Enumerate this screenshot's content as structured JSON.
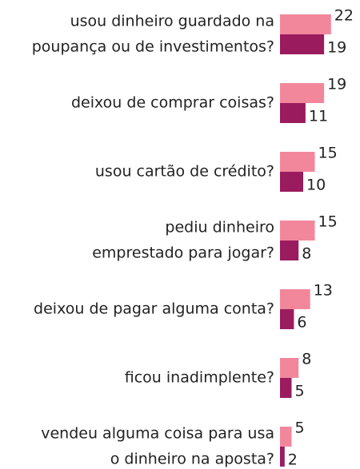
{
  "chart_data": {
    "type": "bar",
    "orientation": "horizontal",
    "categories": [
      [
        "usou dinheiro guardado na",
        "poupança ou de investimentos?"
      ],
      [
        "deixou de comprar coisas?"
      ],
      [
        "usou cartão de crédito?"
      ],
      [
        "pediu dinheiro",
        "emprestado para jogar?"
      ],
      [
        "deixou de pagar alguma conta?"
      ],
      [
        "ficou inadimplente?"
      ],
      [
        "vendeu alguma coisa para usa",
        "o dinheiro na aposta?"
      ]
    ],
    "series": [
      {
        "color": "#f2879c",
        "values": [
          22,
          19,
          15,
          15,
          13,
          8,
          5
        ]
      },
      {
        "color": "#9b1b5f",
        "values": [
          19,
          11,
          10,
          8,
          6,
          5,
          2
        ]
      }
    ]
  }
}
